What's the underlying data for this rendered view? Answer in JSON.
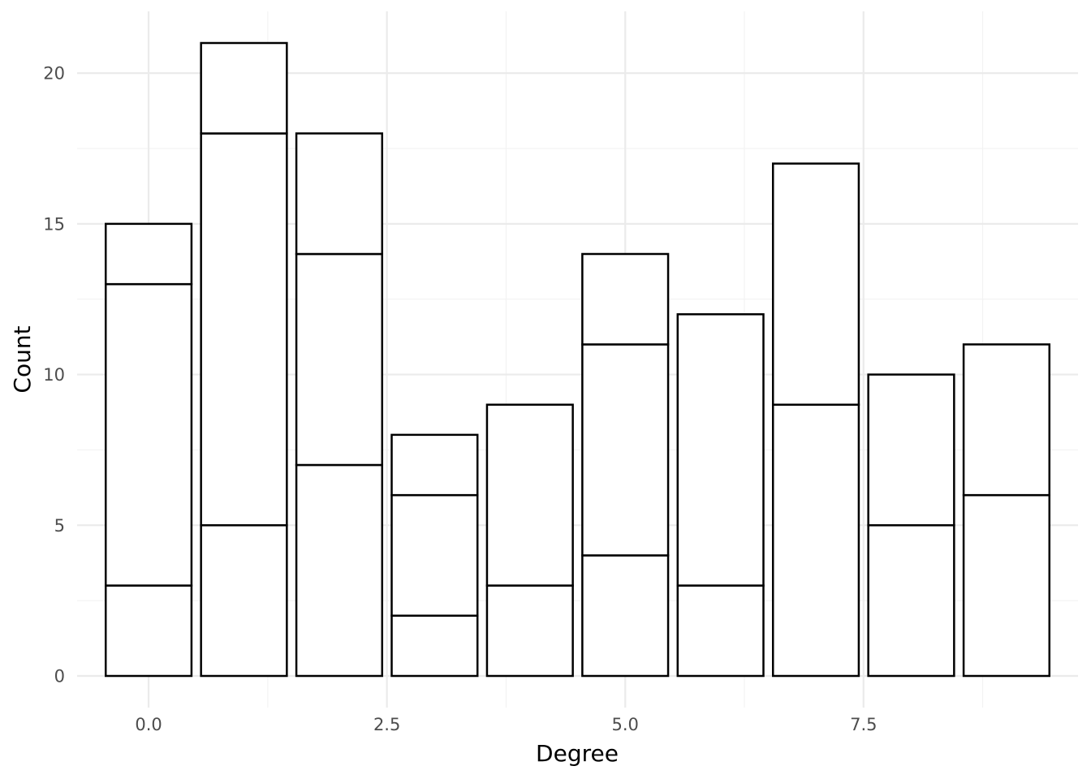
{
  "chart_data": {
    "type": "bar",
    "stacked": true,
    "title": "",
    "xlabel": "Degree",
    "ylabel": "Count",
    "xlim": [
      -0.75,
      9.75
    ],
    "ylim": [
      -1.05,
      22.05
    ],
    "x_ticks": [
      0.0,
      2.5,
      5.0,
      7.5
    ],
    "x_tick_labels": [
      "0.0",
      "2.5",
      "5.0",
      "7.5"
    ],
    "x_minor_ticks": [
      1.25,
      3.75,
      6.25,
      8.75
    ],
    "y_ticks": [
      0,
      5,
      10,
      15,
      20
    ],
    "y_tick_labels": [
      "0",
      "5",
      "10",
      "15",
      "20"
    ],
    "y_minor_ticks": [
      2.5,
      7.5,
      12.5,
      17.5
    ],
    "grid": true,
    "legend": "none",
    "bar_width": 0.9,
    "fill_color": "#ffffff",
    "outline_color": "#000000",
    "bars": [
      {
        "x": 0,
        "segments": [
          3,
          10,
          2
        ]
      },
      {
        "x": 1,
        "segments": [
          5,
          13,
          3
        ]
      },
      {
        "x": 2,
        "segments": [
          7,
          7,
          4
        ]
      },
      {
        "x": 3,
        "segments": [
          2,
          4,
          2
        ]
      },
      {
        "x": 4,
        "segments": [
          3,
          6
        ]
      },
      {
        "x": 5,
        "segments": [
          4,
          7,
          3
        ]
      },
      {
        "x": 6,
        "segments": [
          3,
          9
        ]
      },
      {
        "x": 7,
        "segments": [
          9,
          8
        ]
      },
      {
        "x": 8,
        "segments": [
          5,
          5
        ]
      },
      {
        "x": 9,
        "segments": [
          6,
          5
        ]
      }
    ]
  }
}
